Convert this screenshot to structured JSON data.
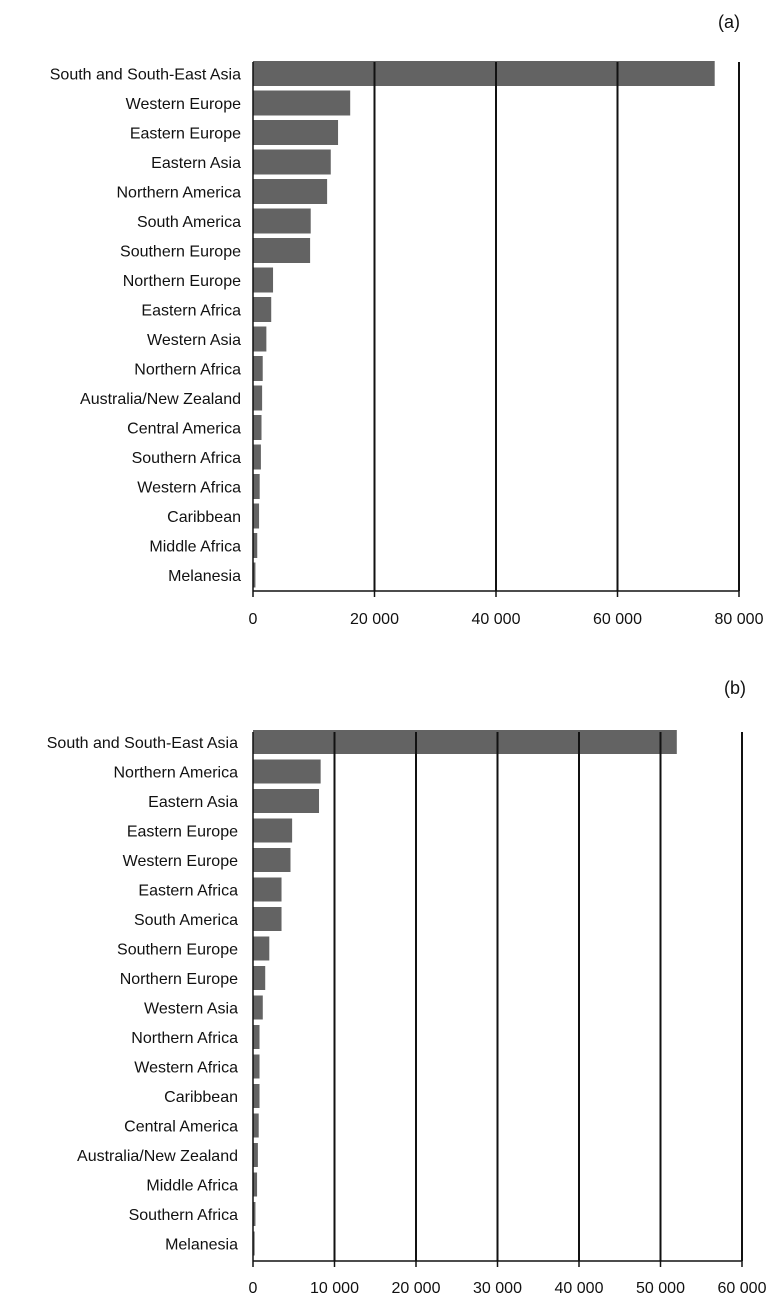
{
  "chart_data": [
    {
      "type": "bar",
      "orientation": "horizontal",
      "panel_label": "(a)",
      "categories": [
        "South and South-East Asia",
        "Western Europe",
        "Eastern Europe",
        "Eastern Asia",
        "Northern America",
        "South America",
        "Southern Europe",
        "Northern Europe",
        "Eastern Africa",
        "Western Asia",
        "Northern Africa",
        "Australia/New Zealand",
        "Central America",
        "Southern Africa",
        "Western Africa",
        "Caribbean",
        "Middle Africa",
        "Melanesia"
      ],
      "values": [
        76000,
        16000,
        14000,
        12800,
        12200,
        9500,
        9400,
        3300,
        3000,
        2200,
        1600,
        1500,
        1400,
        1300,
        1100,
        1000,
        700,
        400
      ],
      "xlim": [
        0,
        80000
      ],
      "xticks": [
        0,
        20000,
        40000,
        60000,
        80000
      ],
      "xtick_labels": [
        "0",
        "20 000",
        "40 000",
        "60 000",
        "80 000"
      ],
      "gridlines": "vertical",
      "bar_color": "#636363",
      "title": "",
      "xlabel": "",
      "ylabel": ""
    },
    {
      "type": "bar",
      "orientation": "horizontal",
      "panel_label": "(b)",
      "categories": [
        "South and South-East Asia",
        "Northern America",
        "Eastern Asia",
        "Eastern Europe",
        "Western Europe",
        "Eastern Africa",
        "South America",
        "Southern Europe",
        "Northern Europe",
        "Western Asia",
        "Northern Africa",
        "Western Africa",
        "Caribbean",
        "Central America",
        "Australia/New Zealand",
        "Middle Africa",
        "Southern Africa",
        "Melanesia"
      ],
      "values": [
        52000,
        8300,
        8100,
        4800,
        4600,
        3500,
        3500,
        2000,
        1500,
        1200,
        800,
        800,
        800,
        700,
        600,
        500,
        300,
        200
      ],
      "xlim": [
        0,
        60000
      ],
      "xticks": [
        0,
        10000,
        20000,
        30000,
        40000,
        50000,
        60000
      ],
      "xtick_labels": [
        "0",
        "10 000",
        "20 000",
        "30 000",
        "40 000",
        "50 000",
        "60 000"
      ],
      "gridlines": "vertical",
      "bar_color": "#636363",
      "title": "",
      "xlabel": "",
      "ylabel": ""
    }
  ]
}
